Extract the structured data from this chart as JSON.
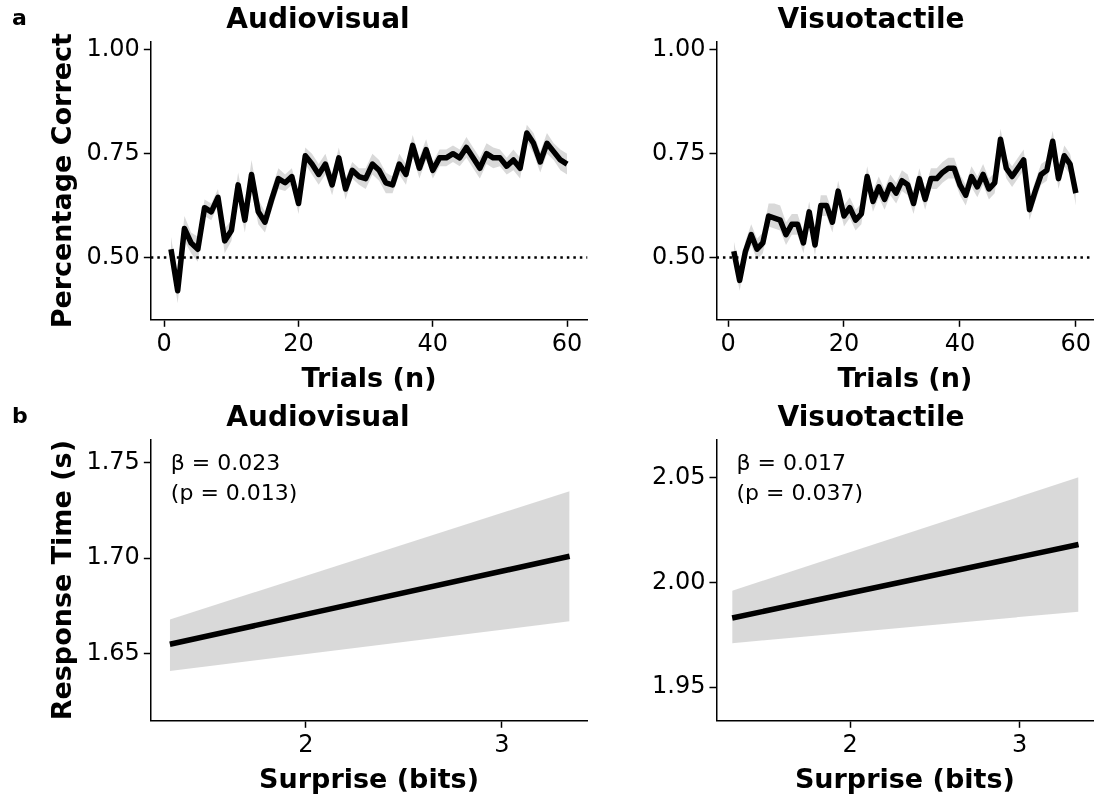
{
  "chart_data": [
    {
      "type": "line",
      "title": "Audiovisual",
      "xlabel": "Trials (n)",
      "ylabel": "Percentage Correct",
      "annotations": [
        "a"
      ],
      "xlim": [
        -2,
        63
      ],
      "xticks": [
        0,
        20,
        40,
        60
      ],
      "ylim": [
        0.35,
        1.02
      ],
      "yticks": [
        {
          "value": 0.5,
          "label": "0.50"
        },
        {
          "value": 0.75,
          "label": "0.75"
        },
        {
          "value": 1.0,
          "label": "1.00"
        }
      ],
      "ref_lines": [
        {
          "axis": "y",
          "value": 0.5,
          "line_style": "dotted",
          "color": "#000000"
        }
      ],
      "x": [
        1,
        2,
        3,
        4,
        5,
        6,
        7,
        8,
        9,
        10,
        11,
        12,
        13,
        14,
        15,
        16,
        17,
        18,
        19,
        20,
        21,
        22,
        23,
        24,
        25,
        26,
        27,
        28,
        29,
        30,
        31,
        32,
        33,
        34,
        35,
        36,
        37,
        38,
        39,
        40,
        41,
        42,
        43,
        44,
        45,
        46,
        47,
        48,
        49,
        50,
        51,
        52,
        53,
        54,
        55,
        56,
        57,
        58,
        59,
        60
      ],
      "series": [
        {
          "color": "#000000",
          "values": [
            0.52,
            0.42,
            0.57,
            0.535,
            0.52,
            0.62,
            0.61,
            0.645,
            0.54,
            0.565,
            0.675,
            0.59,
            0.7,
            0.61,
            0.585,
            0.64,
            0.69,
            0.68,
            0.695,
            0.63,
            0.745,
            0.725,
            0.7,
            0.725,
            0.675,
            0.74,
            0.665,
            0.71,
            0.695,
            0.69,
            0.725,
            0.71,
            0.68,
            0.675,
            0.725,
            0.7,
            0.77,
            0.715,
            0.76,
            0.71,
            0.74,
            0.74,
            0.75,
            0.74,
            0.765,
            0.74,
            0.715,
            0.75,
            0.74,
            0.74,
            0.72,
            0.735,
            0.715,
            0.8,
            0.775,
            0.73,
            0.775,
            0.755,
            0.735,
            0.725
          ],
          "lower": [
            0.49,
            0.39,
            0.54,
            0.51,
            0.49,
            0.6,
            0.59,
            0.625,
            0.51,
            0.54,
            0.645,
            0.56,
            0.665,
            0.58,
            0.56,
            0.615,
            0.665,
            0.66,
            0.675,
            0.605,
            0.725,
            0.7,
            0.675,
            0.7,
            0.65,
            0.715,
            0.64,
            0.69,
            0.675,
            0.665,
            0.7,
            0.685,
            0.655,
            0.655,
            0.7,
            0.675,
            0.745,
            0.69,
            0.735,
            0.69,
            0.72,
            0.72,
            0.73,
            0.72,
            0.74,
            0.715,
            0.69,
            0.725,
            0.715,
            0.72,
            0.7,
            0.71,
            0.69,
            0.78,
            0.75,
            0.705,
            0.75,
            0.735,
            0.71,
            0.7
          ],
          "upper": [
            0.55,
            0.45,
            0.6,
            0.56,
            0.55,
            0.64,
            0.63,
            0.665,
            0.57,
            0.59,
            0.705,
            0.62,
            0.735,
            0.64,
            0.61,
            0.665,
            0.715,
            0.7,
            0.715,
            0.655,
            0.765,
            0.75,
            0.725,
            0.75,
            0.7,
            0.765,
            0.69,
            0.73,
            0.715,
            0.715,
            0.75,
            0.735,
            0.705,
            0.695,
            0.75,
            0.725,
            0.795,
            0.74,
            0.785,
            0.73,
            0.76,
            0.76,
            0.77,
            0.76,
            0.79,
            0.765,
            0.74,
            0.775,
            0.765,
            0.76,
            0.74,
            0.76,
            0.74,
            0.82,
            0.8,
            0.755,
            0.8,
            0.775,
            0.76,
            0.75
          ]
        }
      ]
    },
    {
      "type": "line",
      "title": "Visuotactile",
      "xlabel": "Trials (n)",
      "xlim": [
        -2,
        63
      ],
      "xticks": [
        0,
        20,
        40,
        60
      ],
      "ylim": [
        0.35,
        1.02
      ],
      "yticks": [
        {
          "value": 0.5,
          "label": "0.50"
        },
        {
          "value": 0.75,
          "label": "0.75"
        },
        {
          "value": 1.0,
          "label": "1.00"
        }
      ],
      "ref_lines": [
        {
          "axis": "y",
          "value": 0.5,
          "line_style": "dotted",
          "color": "#000000"
        }
      ],
      "x": [
        1,
        2,
        3,
        4,
        5,
        6,
        7,
        8,
        9,
        10,
        11,
        12,
        13,
        14,
        15,
        16,
        17,
        18,
        19,
        20,
        21,
        22,
        23,
        24,
        25,
        26,
        27,
        28,
        29,
        30,
        31,
        32,
        33,
        34,
        35,
        36,
        37,
        38,
        39,
        40,
        41,
        42,
        43,
        44,
        45,
        46,
        47,
        48,
        49,
        50,
        51,
        52,
        53,
        54,
        55,
        56,
        57,
        58,
        59,
        60
      ],
      "series": [
        {
          "color": "#000000",
          "values": [
            0.515,
            0.445,
            0.515,
            0.555,
            0.52,
            0.535,
            0.6,
            0.595,
            0.59,
            0.555,
            0.58,
            0.58,
            0.535,
            0.61,
            0.53,
            0.625,
            0.625,
            0.585,
            0.66,
            0.6,
            0.62,
            0.59,
            0.605,
            0.695,
            0.635,
            0.67,
            0.64,
            0.675,
            0.655,
            0.685,
            0.675,
            0.63,
            0.69,
            0.64,
            0.69,
            0.69,
            0.705,
            0.715,
            0.715,
            0.675,
            0.65,
            0.695,
            0.67,
            0.7,
            0.665,
            0.68,
            0.785,
            0.715,
            0.695,
            0.715,
            0.735,
            0.615,
            0.66,
            0.7,
            0.71,
            0.78,
            0.69,
            0.745,
            0.725,
            0.655
          ],
          "lower": [
            0.49,
            0.42,
            0.49,
            0.53,
            0.495,
            0.51,
            0.575,
            0.57,
            0.565,
            0.53,
            0.555,
            0.555,
            0.51,
            0.585,
            0.505,
            0.6,
            0.6,
            0.56,
            0.635,
            0.575,
            0.595,
            0.565,
            0.58,
            0.67,
            0.61,
            0.645,
            0.615,
            0.65,
            0.63,
            0.66,
            0.65,
            0.605,
            0.665,
            0.615,
            0.665,
            0.665,
            0.68,
            0.69,
            0.69,
            0.65,
            0.625,
            0.67,
            0.645,
            0.675,
            0.64,
            0.655,
            0.76,
            0.69,
            0.67,
            0.69,
            0.71,
            0.59,
            0.635,
            0.675,
            0.685,
            0.755,
            0.665,
            0.72,
            0.7,
            0.625
          ],
          "upper": [
            0.54,
            0.47,
            0.54,
            0.58,
            0.545,
            0.56,
            0.63,
            0.63,
            0.625,
            0.585,
            0.605,
            0.605,
            0.56,
            0.635,
            0.555,
            0.65,
            0.65,
            0.61,
            0.685,
            0.625,
            0.645,
            0.615,
            0.63,
            0.72,
            0.66,
            0.695,
            0.665,
            0.7,
            0.68,
            0.71,
            0.7,
            0.655,
            0.715,
            0.665,
            0.715,
            0.715,
            0.73,
            0.74,
            0.74,
            0.7,
            0.675,
            0.72,
            0.695,
            0.725,
            0.69,
            0.705,
            0.81,
            0.74,
            0.72,
            0.74,
            0.76,
            0.64,
            0.685,
            0.725,
            0.735,
            0.805,
            0.715,
            0.77,
            0.75,
            0.685
          ]
        }
      ]
    },
    {
      "type": "line",
      "title": "Audiovisual",
      "xlabel": "Surprise (bits)",
      "ylabel": "Response Time (s)",
      "annotations": [
        "b",
        "β = 0.023",
        "(p = 0.013)"
      ],
      "xlim": [
        1.21,
        3.435
      ],
      "xticks": [
        2,
        3
      ],
      "ylim": [
        1.615,
        1.762
      ],
      "yticks": [
        1.65,
        {
          "value": 1.7,
          "label": "1.70"
        },
        1.75
      ],
      "x": [
        1.307,
        3.345
      ],
      "series": [
        {
          "color": "#000000",
          "values": [
            1.655,
            1.701
          ],
          "lower": [
            1.641,
            1.667
          ],
          "upper": [
            1.668,
            1.735
          ]
        }
      ]
    },
    {
      "type": "line",
      "title": "Visuotactile",
      "xlabel": "Surprise (bits)",
      "annotations": [
        "β = 0.017",
        "(p = 0.037)"
      ],
      "xlim": [
        1.21,
        3.435
      ],
      "xticks": [
        2,
        3
      ],
      "ylim": [
        1.934,
        2.068
      ],
      "yticks": [
        1.95,
        {
          "value": 2.0,
          "label": "2.00"
        },
        2.05
      ],
      "x": [
        1.303,
        3.348
      ],
      "series": [
        {
          "color": "#000000",
          "values": [
            1.983,
            2.018
          ],
          "lower": [
            1.971,
            1.986
          ],
          "upper": [
            1.996,
            2.05
          ]
        }
      ]
    }
  ]
}
